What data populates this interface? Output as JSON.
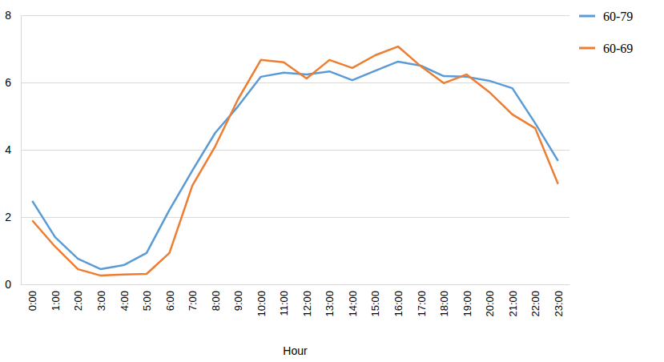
{
  "chart_data": {
    "type": "line",
    "x_label": "Hour",
    "categories": [
      "0:00",
      "1:00",
      "2:00",
      "3:00",
      "4:00",
      "5:00",
      "6:00",
      "7:00",
      "8:00",
      "9:00",
      "10:00",
      "11:00",
      "12:00",
      "13:00",
      "14:00",
      "15:00",
      "16:00",
      "17:00",
      "18:00",
      "19:00",
      "20:00",
      "21:00",
      "22:00",
      "23:00"
    ],
    "series": [
      {
        "name": "60-79",
        "color": "#5b9bd5",
        "values": [
          2.48,
          1.4,
          0.76,
          0.45,
          0.57,
          0.93,
          2.21,
          3.38,
          4.5,
          5.29,
          6.17,
          6.29,
          6.24,
          6.33,
          6.07,
          6.35,
          6.62,
          6.5,
          6.19,
          6.17,
          6.05,
          5.83,
          4.79,
          3.67
        ]
      },
      {
        "name": "60-69",
        "color": "#ed7d31",
        "values": [
          1.9,
          1.12,
          0.45,
          0.26,
          0.29,
          0.31,
          0.93,
          2.93,
          4.1,
          5.5,
          6.67,
          6.6,
          6.12,
          6.67,
          6.43,
          6.81,
          7.07,
          6.48,
          5.98,
          6.24,
          5.71,
          5.05,
          4.64,
          2.98
        ]
      }
    ],
    "ylim": [
      0,
      8
    ],
    "yticks": [
      0,
      2,
      4,
      6,
      8
    ],
    "grid": true,
    "legend": "right"
  }
}
